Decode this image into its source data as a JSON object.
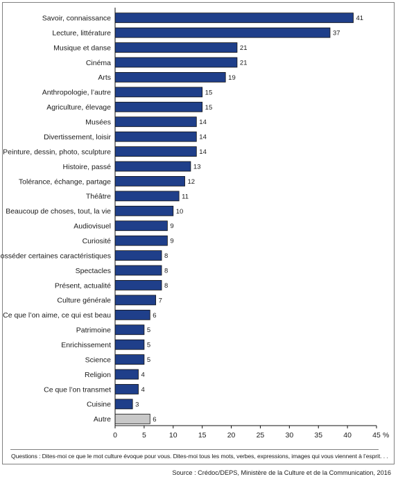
{
  "chart_data": {
    "type": "bar",
    "orientation": "horizontal",
    "categories": [
      "Savoir, connaissance",
      "Lecture, littérature",
      "Musique et danse",
      "Cinéma",
      "Arts",
      "Anthropologie, l’autre",
      "Agriculture, élevage",
      "Musées",
      "Divertissement, loisir",
      "Peinture, dessin, photo, sculpture",
      "Histoire, passé",
      "Tolérance, échange, partage",
      "Théâtre",
      "Beaucoup de choses, tout, la vie",
      "Audiovisuel",
      "Curiosité",
      "Posséder certaines caractéristiques",
      "Spectacles",
      "Présent, actualité",
      "Culture générale",
      "Ce que l’on aime, ce qui est beau",
      "Patrimoine",
      "Enrichissement",
      "Science",
      "Religion",
      "Ce que l’on transmet",
      "Cuisine",
      "Autre"
    ],
    "values": [
      41,
      37,
      21,
      21,
      19,
      15,
      15,
      14,
      14,
      14,
      13,
      12,
      11,
      10,
      9,
      9,
      8,
      8,
      8,
      7,
      6,
      5,
      5,
      5,
      4,
      4,
      3,
      6
    ],
    "value_labels": [
      "41",
      "37",
      "21",
      "21",
      "19",
      "15",
      "15",
      "14",
      "14",
      "14",
      "13",
      "12",
      "11",
      "10",
      "9",
      "9",
      "8",
      "8",
      "8",
      "7",
      "6",
      "5",
      "5",
      "5",
      "4",
      "4",
      "3",
      "6"
    ],
    "bar_colors": [
      "#1f3f8a",
      "#1f3f8a",
      "#1f3f8a",
      "#1f3f8a",
      "#1f3f8a",
      "#1f3f8a",
      "#1f3f8a",
      "#1f3f8a",
      "#1f3f8a",
      "#1f3f8a",
      "#1f3f8a",
      "#1f3f8a",
      "#1f3f8a",
      "#1f3f8a",
      "#1f3f8a",
      "#1f3f8a",
      "#1f3f8a",
      "#1f3f8a",
      "#1f3f8a",
      "#1f3f8a",
      "#1f3f8a",
      "#1f3f8a",
      "#1f3f8a",
      "#1f3f8a",
      "#1f3f8a",
      "#1f3f8a",
      "#1f3f8a",
      "#c8c8c8"
    ],
    "bar_stroke": "#111111",
    "xlim": [
      0,
      45
    ],
    "xticks": [
      0,
      5,
      10,
      15,
      20,
      25,
      30,
      35,
      40,
      45
    ],
    "xtick_labels": [
      "0",
      "5",
      "10",
      "15",
      "20",
      "25",
      "30",
      "35",
      "40",
      "45"
    ],
    "x_unit": "%",
    "grid": false
  },
  "footnote": {
    "questions": "Questions : Dites-moi ce que le mot culture évoque pour vous. Dites-moi tous les mots, verbes, expressions, images qui vous viennent à l’esprit. . .",
    "source": "Source : Crédoc/DEPS, Ministère de la Culture et de la Communication, 2016"
  }
}
